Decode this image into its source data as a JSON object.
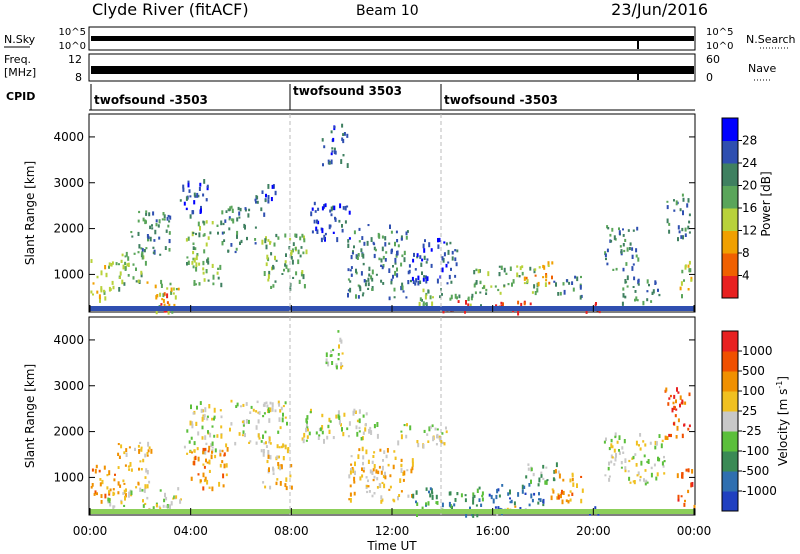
{
  "header": {
    "station": "Clyde River (fitACF)",
    "beam": "Beam 10",
    "date": "23/Jun/2016"
  },
  "chart_data": [
    {
      "type": "line",
      "panel": "noise",
      "left_label": "N.Sky",
      "right_label": "N.Search",
      "left_ticks": [
        "10^5",
        "10^0"
      ],
      "right_ticks": [
        "10^5",
        "10^0"
      ]
    },
    {
      "type": "line",
      "panel": "frequency",
      "left_label_lines": [
        "Freq.",
        "[MHz]"
      ],
      "left_ticks": [
        "12",
        "8"
      ],
      "right_label": "Nave",
      "right_ticks": [
        "60",
        "0"
      ]
    },
    {
      "type": "table",
      "panel": "cpid",
      "label": "CPID",
      "segments": [
        {
          "name": "twofsound -3503",
          "start_h": 0,
          "end_h": 8
        },
        {
          "name": "twofsound 3503",
          "start_h": 8,
          "end_h": 14
        },
        {
          "name": "twofsound -3503",
          "start_h": 14,
          "end_h": 24
        }
      ]
    },
    {
      "type": "heatmap",
      "panel": "power",
      "ylabel": "Slant Range [km]",
      "ylim": [
        180,
        4500
      ],
      "y_ticks": [
        1000,
        2000,
        3000,
        4000
      ],
      "xlim": [
        0,
        24
      ],
      "colorbar": {
        "label": "Power [dB]",
        "ticks": [
          "4",
          "8",
          "12",
          "16",
          "20",
          "24",
          "28"
        ],
        "colors": [
          "#0000ff",
          "#2f4fb0",
          "#3f8060",
          "#5aa55a",
          "#b8d23a",
          "#f0a000",
          "#f06000",
          "#e82020"
        ]
      },
      "regions": [
        {
          "t": [
            0.0,
            0.9
          ],
          "r": [
            450,
            1350
          ],
          "level": 4
        },
        {
          "t": [
            1.0,
            2.2
          ],
          "r": [
            600,
            1600
          ],
          "level": 3
        },
        {
          "t": [
            1.6,
            3.2
          ],
          "r": [
            1400,
            2400
          ],
          "level": 2
        },
        {
          "t": [
            2.2,
            3.5
          ],
          "r": [
            200,
            900
          ],
          "level": 4
        },
        {
          "t": [
            2.6,
            3.1
          ],
          "r": [
            250,
            650
          ],
          "level": 7
        },
        {
          "t": [
            3.5,
            4.7
          ],
          "r": [
            2300,
            3100
          ],
          "level": 1
        },
        {
          "t": [
            3.8,
            5.2
          ],
          "r": [
            800,
            2200
          ],
          "level": 3
        },
        {
          "t": [
            5.2,
            6.6
          ],
          "r": [
            1500,
            2500
          ],
          "level": 2
        },
        {
          "t": [
            6.5,
            7.4
          ],
          "r": [
            2300,
            3000
          ],
          "level": 1
        },
        {
          "t": [
            6.8,
            8.6
          ],
          "r": [
            700,
            1900
          ],
          "level": 3
        },
        {
          "t": [
            8.6,
            10.3
          ],
          "r": [
            1800,
            2600
          ],
          "level": 1
        },
        {
          "t": [
            9.2,
            10.2
          ],
          "r": [
            3400,
            4300
          ],
          "level": 1
        },
        {
          "t": [
            10.2,
            12.6
          ],
          "r": [
            500,
            2100
          ],
          "level": 2
        },
        {
          "t": [
            12.6,
            14.6
          ],
          "r": [
            800,
            1800
          ],
          "level": 1
        },
        {
          "t": [
            13.0,
            15.5
          ],
          "r": [
            300,
            700
          ],
          "level": 3
        },
        {
          "t": [
            14.0,
            15.0
          ],
          "r": [
            200,
            450
          ],
          "level": 7
        },
        {
          "t": [
            16.0,
            18.2
          ],
          "r": [
            200,
            450
          ],
          "level": 7
        },
        {
          "t": [
            15.2,
            17.8
          ],
          "r": [
            600,
            1200
          ],
          "level": 3
        },
        {
          "t": [
            17.2,
            18.4
          ],
          "r": [
            800,
            1300
          ],
          "level": 5
        },
        {
          "t": [
            18.4,
            19.6
          ],
          "r": [
            500,
            1000
          ],
          "level": 2
        },
        {
          "t": [
            19.6,
            20.4
          ],
          "r": [
            200,
            400
          ],
          "level": 7
        },
        {
          "t": [
            20.4,
            21.8
          ],
          "r": [
            1100,
            2100
          ],
          "level": 2
        },
        {
          "t": [
            21.0,
            22.6
          ],
          "r": [
            400,
            1000
          ],
          "level": 2
        },
        {
          "t": [
            22.9,
            23.8
          ],
          "r": [
            1800,
            2800
          ],
          "level": 2
        },
        {
          "t": [
            23.4,
            24.0
          ],
          "r": [
            500,
            1300
          ],
          "level": 4
        }
      ]
    },
    {
      "type": "heatmap",
      "panel": "velocity",
      "ylabel": "Slant Range [km]",
      "ylim": [
        180,
        4500
      ],
      "y_ticks": [
        1000,
        2000,
        3000,
        4000
      ],
      "xlim": [
        0,
        24
      ],
      "x_ticks": [
        "00:00",
        "04:00",
        "08:00",
        "12:00",
        "16:00",
        "20:00",
        "00:00"
      ],
      "xlabel": "Time UT",
      "colorbar": {
        "label": "Velocity [m s^-1]",
        "ticks": [
          "1000",
          "500",
          "100",
          "25",
          "-25",
          "-100",
          "-500",
          "-1000"
        ],
        "colors": [
          "#2040c0",
          "#2f6fb0",
          "#3a8a55",
          "#5bbf3b",
          "#c8c8c8",
          "#f0c020",
          "#f09000",
          "#f05000",
          "#e82020"
        ]
      },
      "regions": [
        {
          "t": [
            0.0,
            1.0
          ],
          "r": [
            500,
            1400
          ],
          "level": 2
        },
        {
          "t": [
            1.0,
            2.4
          ],
          "r": [
            600,
            1800
          ],
          "level": 3
        },
        {
          "t": [
            0.5,
            3.6
          ],
          "r": [
            300,
            800
          ],
          "level": 4
        },
        {
          "t": [
            3.6,
            5.2
          ],
          "r": [
            1500,
            2700
          ],
          "level": 4
        },
        {
          "t": [
            4.0,
            5.5
          ],
          "r": [
            800,
            1800
          ],
          "level": 2
        },
        {
          "t": [
            5.5,
            7.8
          ],
          "r": [
            1700,
            2700
          ],
          "level": 4
        },
        {
          "t": [
            6.6,
            8.0
          ],
          "r": [
            800,
            1800
          ],
          "level": 3
        },
        {
          "t": [
            8.4,
            11.6
          ],
          "r": [
            1800,
            2500
          ],
          "level": 4
        },
        {
          "t": [
            9.3,
            10.1
          ],
          "r": [
            3400,
            4300
          ],
          "level": 4
        },
        {
          "t": [
            10.2,
            12.8
          ],
          "r": [
            500,
            1700
          ],
          "level": 3
        },
        {
          "t": [
            12.0,
            14.2
          ],
          "r": [
            1700,
            2200
          ],
          "level": 4
        },
        {
          "t": [
            12.8,
            15.6
          ],
          "r": [
            200,
            800
          ],
          "level": 6
        },
        {
          "t": [
            15.8,
            18.0
          ],
          "r": [
            250,
            900
          ],
          "level": 7
        },
        {
          "t": [
            16.0,
            17.2
          ],
          "r": [
            200,
            400
          ],
          "level": 3
        },
        {
          "t": [
            17.2,
            18.6
          ],
          "r": [
            900,
            1400
          ],
          "level": 5
        },
        {
          "t": [
            18.2,
            19.6
          ],
          "r": [
            500,
            1200
          ],
          "level": 2
        },
        {
          "t": [
            19.8,
            20.2
          ],
          "r": [
            200,
            400
          ],
          "level": 8
        },
        {
          "t": [
            20.4,
            22.8
          ],
          "r": [
            900,
            2000
          ],
          "level": 4
        },
        {
          "t": [
            22.8,
            23.8
          ],
          "r": [
            1800,
            3000
          ],
          "level": 1
        },
        {
          "t": [
            23.3,
            24.0
          ],
          "r": [
            400,
            1200
          ],
          "level": 1
        }
      ]
    }
  ]
}
